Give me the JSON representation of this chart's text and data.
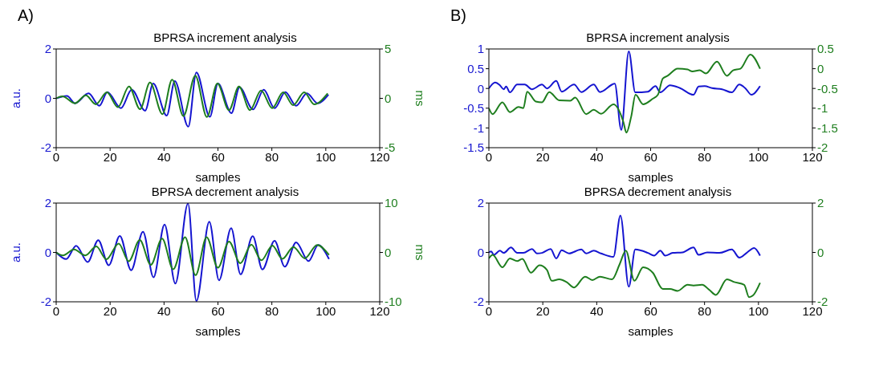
{
  "chart_data": [
    {
      "type": "line",
      "title": "BPRSA increment analysis",
      "annotations": [
        "A)"
      ],
      "xlabel": "samples",
      "ylabel": "a.u.",
      "y2label": "ms",
      "xlim": [
        0,
        120
      ],
      "xticks": [
        0,
        20,
        40,
        60,
        80,
        100,
        120
      ],
      "ylim": [
        -2,
        2
      ],
      "yticks": [
        -2,
        0,
        2
      ],
      "y2lim": [
        -5,
        5
      ],
      "y2ticks": [
        -5,
        0,
        5
      ],
      "series": [
        {
          "color": "#1515d0",
          "axis": "y",
          "x": [
            0,
            4,
            7,
            12,
            16,
            19,
            24,
            28,
            33,
            36,
            41,
            44,
            49,
            52,
            57,
            60,
            65,
            68,
            73,
            77,
            81,
            85,
            89,
            93,
            97,
            101
          ],
          "values": [
            0,
            0.1,
            -0.2,
            0.2,
            -0.3,
            0.25,
            -0.4,
            0.35,
            -0.5,
            0.6,
            -0.7,
            0.7,
            -1.15,
            1.05,
            -0.75,
            0.6,
            -0.6,
            0.45,
            -0.45,
            0.35,
            -0.4,
            0.25,
            -0.3,
            0.2,
            -0.2,
            0.15
          ]
        },
        {
          "color": "#1e7e1e",
          "axis": "y2",
          "x": [
            0,
            2.3,
            6.9,
            11,
            14.7,
            18.8,
            22.9,
            27,
            31.1,
            34.8,
            39.4,
            43,
            47.2,
            51.6,
            55.9,
            59.8,
            64.1,
            67.8,
            71.9,
            76,
            80.1,
            84.2,
            87.9,
            92,
            95.7,
            100.7
          ],
          "values": [
            0,
            0.2,
            -0.5,
            0.3,
            -0.6,
            0.6,
            -0.9,
            1.2,
            -1.1,
            1.6,
            -1.6,
            1.9,
            -1.8,
            2.3,
            -1.9,
            1.5,
            -1.2,
            1.2,
            -1.2,
            0.8,
            -1,
            0.6,
            -0.7,
            0.6,
            -0.6,
            0.5
          ]
        }
      ]
    },
    {
      "type": "line",
      "title": "BPRSA increment analysis",
      "annotations": [
        "B)"
      ],
      "xlabel": "samples",
      "xlim": [
        0,
        120
      ],
      "xticks": [
        0,
        20,
        40,
        60,
        80,
        100,
        120
      ],
      "ylim": [
        -1.5,
        1
      ],
      "yticks": [
        -1.5,
        -1,
        -0.5,
        0,
        0.5,
        1
      ],
      "y2lim": [
        -2,
        0.5
      ],
      "y2ticks": [
        -2,
        -1.5,
        -1,
        -0.5,
        0,
        0.5
      ],
      "series": [
        {
          "color": "#1515d0",
          "axis": "y",
          "x": [
            0,
            2.3,
            4.1,
            5.5,
            6.4,
            7.8,
            10.5,
            13.3,
            16,
            19.7,
            21.5,
            25,
            27,
            31.6,
            34.3,
            38.9,
            41.2,
            46.7,
            49.1,
            51.9,
            54.3,
            59,
            61.8,
            63.6,
            67.2,
            70.9,
            75.9,
            77.8,
            80,
            82.8,
            86.5,
            90.1,
            92.9,
            95.2,
            97.4,
            100.6
          ],
          "values": [
            0,
            0.15,
            0.08,
            -0.02,
            0.05,
            -0.1,
            0.1,
            0.1,
            -0.02,
            0.1,
            0,
            0.19,
            -0.08,
            0.1,
            -0.09,
            0.1,
            -0.09,
            0.12,
            -1.05,
            0.94,
            -0.1,
            -0.08,
            0.06,
            -0.1,
            0.08,
            0.01,
            -0.16,
            0.05,
            0.06,
            0.01,
            -0.02,
            -0.1,
            0.1,
            0,
            -0.16,
            0.06
          ]
        },
        {
          "color": "#1e7e1e",
          "axis": "y2",
          "x": [
            0,
            1.4,
            5,
            7.8,
            11,
            12.8,
            14.2,
            17.4,
            19.7,
            22.4,
            26.1,
            30.2,
            32,
            36.1,
            38.9,
            41.6,
            46.2,
            49.9,
            51,
            52.8,
            54.4,
            57.2,
            60.8,
            62.7,
            64.5,
            66.3,
            70,
            73.7,
            75.5,
            78.2,
            80.5,
            84.6,
            88.3,
            90.6,
            93.3,
            97,
            100.6
          ],
          "values": [
            -1,
            -1.15,
            -0.85,
            -1.1,
            -0.97,
            -1,
            -0.58,
            -0.83,
            -0.85,
            -0.59,
            -0.8,
            -0.81,
            -0.73,
            -1.15,
            -1.04,
            -1.14,
            -0.9,
            -1.35,
            -1.62,
            -1.21,
            -0.66,
            -0.9,
            -0.76,
            -0.66,
            -0.25,
            -0.18,
            0,
            -0.02,
            -0.07,
            -0.04,
            -0.12,
            0.18,
            -0.18,
            -0.04,
            0,
            0.36,
            0
          ]
        }
      ]
    },
    {
      "type": "line",
      "title": "BPRSA decrement analysis",
      "xlabel": "samples",
      "ylabel": "a.u.",
      "y2label": "ms",
      "xlim": [
        0,
        120
      ],
      "xticks": [
        0,
        20,
        40,
        60,
        80,
        100,
        120
      ],
      "ylim": [
        -2,
        2
      ],
      "yticks": [
        -2,
        0,
        2
      ],
      "y2lim": [
        -10,
        10
      ],
      "y2ticks": [
        -10,
        0,
        10
      ],
      "series": [
        {
          "color": "#1515d0",
          "axis": "y",
          "x": [
            0,
            3.7,
            7.4,
            11.7,
            15.6,
            19.5,
            23.6,
            27.8,
            32.2,
            36.1,
            40.2,
            44.2,
            48.9,
            52,
            56.8,
            60.4,
            64.9,
            68.4,
            72.9,
            76.5,
            81,
            84.8,
            89,
            93.6,
            97.2,
            101.2
          ],
          "values": [
            0,
            -0.27,
            0.27,
            -0.39,
            0.5,
            -0.52,
            0.67,
            -0.72,
            0.84,
            -1.01,
            1.13,
            -1.26,
            1.98,
            -1.97,
            1.24,
            -1.13,
            0.98,
            -0.89,
            0.66,
            -0.69,
            0.47,
            -0.58,
            0.41,
            -0.35,
            0.3,
            -0.27
          ]
        },
        {
          "color": "#1e7e1e",
          "axis": "y2",
          "x": [
            0,
            2.5,
            6.6,
            10.8,
            14.9,
            18.6,
            23.2,
            26.9,
            31,
            35.1,
            39.3,
            43.4,
            47.8,
            51.7,
            55.8,
            60,
            64.1,
            68.3,
            72.4,
            76.1,
            80.2,
            83.9,
            88,
            92.2,
            96.8,
            101.2
          ],
          "values": [
            0,
            -0.6,
            0.6,
            -0.6,
            1.2,
            -1.4,
            1.8,
            -1.8,
            2.5,
            -2.5,
            2.8,
            -3.4,
            3.1,
            -4.6,
            3.1,
            -3.1,
            2.2,
            -2.2,
            1.6,
            -1.6,
            1.4,
            -1.3,
            1.1,
            -1.2,
            1.5,
            -0.5
          ]
        }
      ]
    },
    {
      "type": "line",
      "title": "BPRSA decrement analysis",
      "xlabel": "samples",
      "xlim": [
        0,
        120
      ],
      "xticks": [
        0,
        20,
        40,
        60,
        80,
        100,
        120
      ],
      "ylim": [
        -2,
        2
      ],
      "yticks": [
        -2,
        0,
        2
      ],
      "y2lim": [
        -2,
        2
      ],
      "y2ticks": [
        -2,
        0,
        2
      ],
      "series": [
        {
          "color": "#1515d0",
          "axis": "y",
          "x": [
            0,
            0.9,
            1.8,
            4.1,
            5.5,
            8.2,
            10.5,
            12.8,
            16,
            17.8,
            19.7,
            22.9,
            25,
            27,
            29.7,
            34.3,
            36.1,
            38.9,
            41.6,
            46.2,
            48.8,
            51.9,
            54.3,
            59,
            61.3,
            63.6,
            65.4,
            68.2,
            71.8,
            75.9,
            77.8,
            81,
            85.5,
            90.1,
            92.9,
            95.6,
            98.4,
            100.6
          ],
          "values": [
            0,
            0.04,
            -0.1,
            0.07,
            -0.02,
            0.2,
            -0.02,
            -0.02,
            0.14,
            -0.04,
            -0.02,
            0.14,
            -0.24,
            0.09,
            -0.04,
            0.12,
            -0.04,
            0.07,
            -0.04,
            -0.18,
            1.5,
            -1.39,
            0.12,
            -0.02,
            -0.13,
            0.07,
            -0.13,
            -0.02,
            0,
            0.2,
            -0.1,
            0,
            -0.02,
            0.12,
            -0.21,
            -0.02,
            0.18,
            -0.13
          ]
        },
        {
          "color": "#1e7e1e",
          "axis": "y2",
          "x": [
            0,
            1.4,
            5,
            7.8,
            10.5,
            12.4,
            15.6,
            18.8,
            21.5,
            23.3,
            26.1,
            28.8,
            31.6,
            35.7,
            38.4,
            41.2,
            45.7,
            48.5,
            50.8,
            54,
            57.2,
            60.8,
            64.5,
            67.2,
            70,
            73.7,
            75.9,
            79.1,
            81.9,
            84.2,
            88.3,
            91,
            94.7,
            96.5,
            97.9,
            100.6
          ],
          "values": [
            -0.24,
            -0.1,
            -0.6,
            -0.24,
            -0.35,
            -0.26,
            -0.82,
            -0.52,
            -0.7,
            -1.15,
            -1.09,
            -1.2,
            -1.42,
            -0.98,
            -1.12,
            -0.98,
            -1.09,
            -0.48,
            0.07,
            -1.15,
            -0.6,
            -0.82,
            -1.48,
            -1.48,
            -1.56,
            -1.31,
            -1.34,
            -1.31,
            -1.53,
            -1.72,
            -1.09,
            -1.2,
            -1.31,
            -1.81,
            -1.75,
            -1.23
          ]
        }
      ]
    }
  ]
}
